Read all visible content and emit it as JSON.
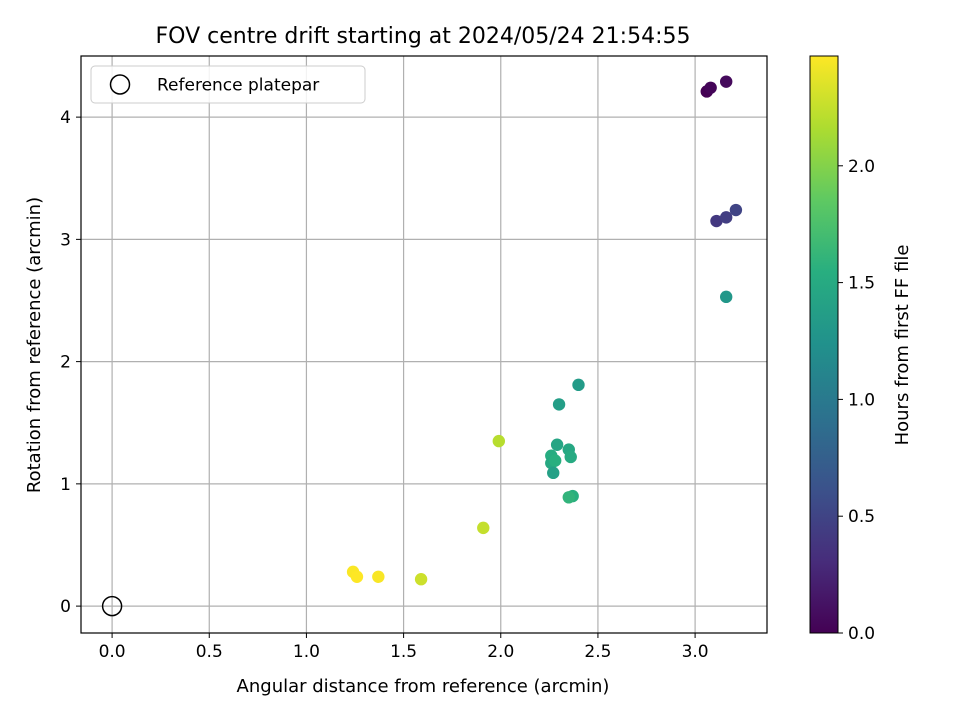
{
  "chart_data": {
    "type": "scatter",
    "title": "FOV centre drift starting at 2024/05/24 21:54:55",
    "xlabel": "Angular distance from reference (arcmin)",
    "ylabel": "Rotation from reference (arcmin)",
    "xlim": [
      -0.16,
      3.37
    ],
    "ylim": [
      -0.22,
      4.5
    ],
    "grid": true,
    "x_ticks": [
      0.0,
      0.5,
      1.0,
      1.5,
      2.0,
      2.5,
      3.0
    ],
    "x_tick_labels": [
      "0.0",
      "0.5",
      "1.0",
      "1.5",
      "2.0",
      "2.5",
      "3.0"
    ],
    "y_ticks": [
      0,
      1,
      2,
      3,
      4
    ],
    "y_tick_labels": [
      "0",
      "1",
      "2",
      "3",
      "4"
    ],
    "legend": {
      "placement": "upper-left",
      "entries": [
        {
          "label": "Reference platepar",
          "marker": "hollow-circle",
          "color": "#000000"
        }
      ]
    },
    "reference_point": {
      "x": 0.0,
      "y": 0.0
    },
    "colorbar": {
      "label": "Hours from first FF file",
      "colormap": "viridis",
      "range": [
        0.0,
        2.47
      ],
      "ticks": [
        0.0,
        0.5,
        1.0,
        1.5,
        2.0
      ],
      "tick_labels": [
        "0.0",
        "0.5",
        "1.0",
        "1.5",
        "2.0"
      ]
    },
    "points": [
      {
        "x": 3.06,
        "y": 4.21,
        "hours": 0.0
      },
      {
        "x": 3.08,
        "y": 4.24,
        "hours": 0.03
      },
      {
        "x": 3.16,
        "y": 4.29,
        "hours": 0.06
      },
      {
        "x": 3.11,
        "y": 3.15,
        "hours": 0.4
      },
      {
        "x": 3.16,
        "y": 3.18,
        "hours": 0.45
      },
      {
        "x": 3.21,
        "y": 3.24,
        "hours": 0.5
      },
      {
        "x": 3.16,
        "y": 2.53,
        "hours": 1.3
      },
      {
        "x": 2.4,
        "y": 1.81,
        "hours": 1.34
      },
      {
        "x": 2.3,
        "y": 1.65,
        "hours": 1.37
      },
      {
        "x": 2.29,
        "y": 1.32,
        "hours": 1.45
      },
      {
        "x": 2.35,
        "y": 1.28,
        "hours": 1.47
      },
      {
        "x": 2.36,
        "y": 1.22,
        "hours": 1.5
      },
      {
        "x": 2.26,
        "y": 1.23,
        "hours": 1.52
      },
      {
        "x": 2.26,
        "y": 1.17,
        "hours": 1.48
      },
      {
        "x": 2.28,
        "y": 1.19,
        "hours": 1.55
      },
      {
        "x": 2.27,
        "y": 1.09,
        "hours": 1.4
      },
      {
        "x": 2.37,
        "y": 0.9,
        "hours": 1.55
      },
      {
        "x": 2.35,
        "y": 0.89,
        "hours": 1.6
      },
      {
        "x": 1.99,
        "y": 1.35,
        "hours": 2.2
      },
      {
        "x": 1.91,
        "y": 0.64,
        "hours": 2.25
      },
      {
        "x": 1.59,
        "y": 0.22,
        "hours": 2.28
      },
      {
        "x": 1.37,
        "y": 0.24,
        "hours": 2.45
      },
      {
        "x": 1.24,
        "y": 0.28,
        "hours": 2.46
      },
      {
        "x": 1.26,
        "y": 0.24,
        "hours": 2.47
      }
    ]
  }
}
